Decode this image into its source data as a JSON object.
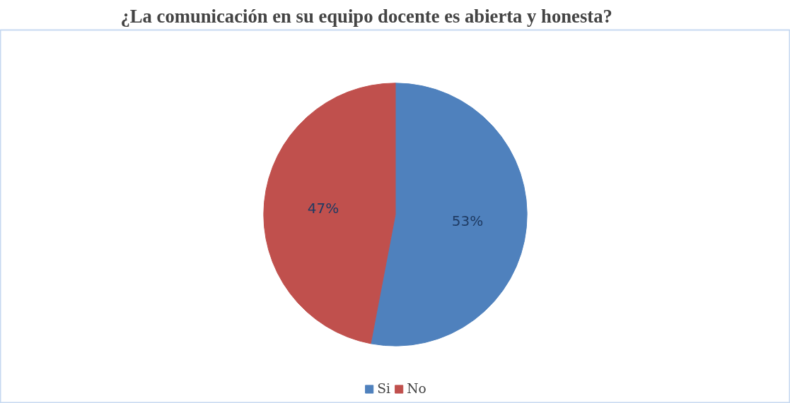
{
  "chart_data": {
    "type": "pie",
    "title": "¿La comunicación en su equipo docente es abierta y honesta?",
    "categories": [
      "Si",
      "No"
    ],
    "values": [
      53,
      47
    ],
    "colors": [
      "#4f81bd",
      "#c0504d"
    ],
    "value_labels": [
      "53%",
      "47%"
    ],
    "legend": "bottom"
  }
}
